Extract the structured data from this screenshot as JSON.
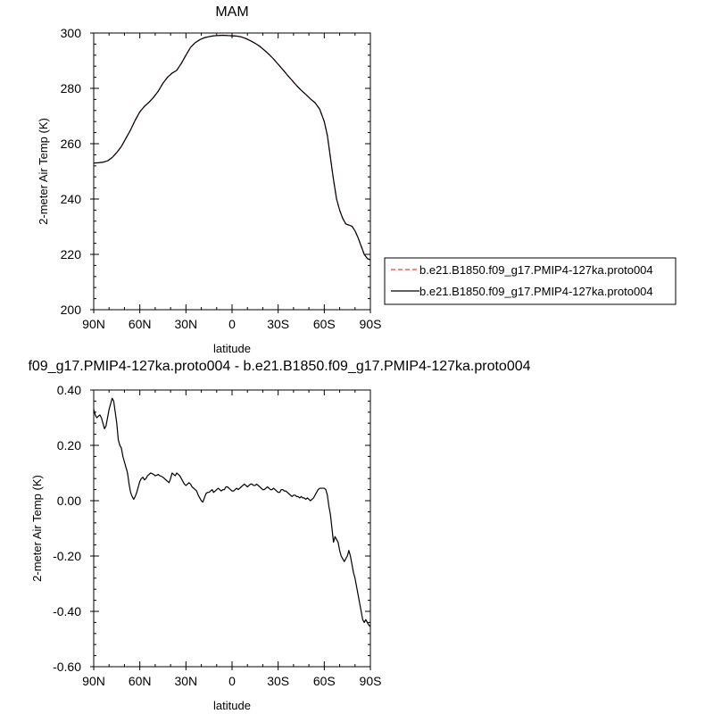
{
  "chart_data": [
    {
      "type": "line",
      "title": "MAM",
      "xlabel": "latitude",
      "ylabel": "2-meter Air Temp (K)",
      "xlim": [
        90,
        -90
      ],
      "ylim": [
        200,
        300
      ],
      "xticks": [
        90,
        60,
        30,
        0,
        -30,
        -60,
        -90
      ],
      "xtick_labels": [
        "90N",
        "60N",
        "30N",
        "0",
        "30S",
        "60S",
        "90S"
      ],
      "yticks": [
        200,
        220,
        240,
        260,
        280,
        300
      ],
      "ytick_labels": [
        "200",
        "220",
        "240",
        "260",
        "280",
        "300"
      ],
      "legend_position": "right",
      "series": [
        {
          "name": "b.e21.B1850.f09_g17.PMIP4-127ka.proto004",
          "style": "dashed",
          "color": "#e8413c",
          "x": [
            90,
            87,
            84,
            81,
            78,
            75,
            72,
            69,
            66,
            63,
            60,
            57,
            54,
            51,
            48,
            45,
            42,
            39,
            36,
            33,
            30,
            27,
            24,
            21,
            18,
            15,
            12,
            9,
            6,
            3,
            0,
            -3,
            -6,
            -9,
            -12,
            -15,
            -18,
            -21,
            -24,
            -27,
            -30,
            -33,
            -36,
            -39,
            -42,
            -45,
            -48,
            -51,
            -54,
            -57,
            -60,
            -62,
            -64,
            -66,
            -68,
            -70,
            -72,
            -74,
            -76,
            -78,
            -80,
            -82,
            -84,
            -86,
            -88,
            -90
          ],
          "y": [
            253,
            253.1,
            253.3,
            253.8,
            255,
            256.8,
            259,
            262,
            265,
            268.5,
            271.5,
            273.5,
            275,
            276.8,
            279,
            281.8,
            284,
            285.5,
            286.5,
            289,
            292,
            294.8,
            296.5,
            297.6,
            298.3,
            298.7,
            299,
            299.1,
            299.2,
            299.1,
            299,
            298.9,
            298.6,
            298,
            297.2,
            296.3,
            295.2,
            293.8,
            292.3,
            290.6,
            288.7,
            286.8,
            284.8,
            282.9,
            281,
            279.3,
            277.8,
            276.2,
            274.8,
            272.5,
            268,
            263,
            255,
            247,
            240,
            236,
            233,
            231,
            230.6,
            230.2,
            228.5,
            226,
            223,
            220,
            218.5,
            218
          ]
        },
        {
          "name": "b.e21.B1850.f09_g17.PMIP4-127ka.proto004",
          "style": "solid",
          "color": "#000000",
          "x": [
            90,
            87,
            84,
            81,
            78,
            75,
            72,
            69,
            66,
            63,
            60,
            57,
            54,
            51,
            48,
            45,
            42,
            39,
            36,
            33,
            30,
            27,
            24,
            21,
            18,
            15,
            12,
            9,
            6,
            3,
            0,
            -3,
            -6,
            -9,
            -12,
            -15,
            -18,
            -21,
            -24,
            -27,
            -30,
            -33,
            -36,
            -39,
            -42,
            -45,
            -48,
            -51,
            -54,
            -57,
            -60,
            -62,
            -64,
            -66,
            -68,
            -70,
            -72,
            -74,
            -76,
            -78,
            -80,
            -82,
            -84,
            -86,
            -88,
            -90
          ],
          "y": [
            253,
            253.1,
            253.3,
            253.8,
            255,
            256.8,
            259,
            262,
            265,
            268.5,
            271.5,
            273.5,
            275,
            276.8,
            279,
            281.8,
            284,
            285.5,
            286.5,
            289,
            292,
            294.8,
            296.5,
            297.6,
            298.3,
            298.7,
            299,
            299.1,
            299.2,
            299.1,
            299,
            298.9,
            298.6,
            298,
            297.2,
            296.3,
            295.2,
            293.8,
            292.3,
            290.6,
            288.7,
            286.8,
            284.8,
            282.9,
            281,
            279.3,
            277.8,
            276.2,
            274.8,
            272.5,
            268,
            263,
            255,
            247,
            240,
            236,
            233,
            231,
            230.6,
            230.2,
            228.5,
            226,
            223,
            220,
            218.5,
            218
          ]
        }
      ]
    },
    {
      "type": "line",
      "title": "f09_g17.PMIP4-127ka.proto004 - b.e21.B1850.f09_g17.PMIP4-127ka.proto004",
      "xlabel": "latitude",
      "ylabel": "2-meter Air Temp (K)",
      "xlim": [
        90,
        -90
      ],
      "ylim": [
        -0.6,
        0.4
      ],
      "xticks": [
        90,
        60,
        30,
        0,
        -30,
        -60,
        -90
      ],
      "xtick_labels": [
        "90N",
        "60N",
        "30N",
        "0",
        "30S",
        "60S",
        "90S"
      ],
      "yticks": [
        -0.6,
        -0.4,
        -0.2,
        0,
        0.2,
        0.4
      ],
      "ytick_labels": [
        "-0.60",
        "-0.40",
        "-0.20",
        "0.00",
        "0.20",
        "0.40"
      ],
      "series": [
        {
          "style": "solid",
          "color": "#000000",
          "x": [
            90,
            89,
            88,
            87,
            86,
            85,
            84,
            83,
            82,
            81,
            80,
            79,
            78,
            77,
            76,
            75,
            74,
            73,
            72,
            71,
            70,
            69,
            68,
            67,
            66,
            65,
            64,
            63,
            62,
            61,
            60,
            59,
            58,
            57,
            56,
            55,
            54,
            53,
            52,
            51,
            50,
            49,
            48,
            47,
            46,
            45,
            44,
            43,
            42,
            41,
            40,
            39,
            38,
            37,
            36,
            35,
            34,
            33,
            32,
            31,
            30,
            29,
            28,
            27,
            26,
            25,
            24,
            23,
            22,
            21,
            20,
            19,
            18,
            17,
            16,
            15,
            14,
            13,
            12,
            11,
            10,
            9,
            8,
            7,
            6,
            5,
            4,
            3,
            2,
            1,
            0,
            -1,
            -2,
            -3,
            -4,
            -5,
            -6,
            -7,
            -8,
            -9,
            -10,
            -11,
            -12,
            -13,
            -14,
            -15,
            -16,
            -17,
            -18,
            -19,
            -20,
            -21,
            -22,
            -23,
            -24,
            -25,
            -26,
            -27,
            -28,
            -29,
            -30,
            -31,
            -32,
            -33,
            -34,
            -35,
            -36,
            -37,
            -38,
            -39,
            -40,
            -41,
            -42,
            -43,
            -44,
            -45,
            -46,
            -47,
            -48,
            -49,
            -50,
            -51,
            -52,
            -53,
            -54,
            -55,
            -56,
            -57,
            -58,
            -59,
            -60,
            -61,
            -62,
            -63,
            -64,
            -65,
            -66,
            -67,
            -68,
            -69,
            -70,
            -71,
            -72,
            -73,
            -74,
            -75,
            -76,
            -77,
            -78,
            -79,
            -80,
            -81,
            -82,
            -83,
            -84,
            -85,
            -86,
            -87,
            -88,
            -89,
            -90
          ],
          "y": [
            0.33,
            0.31,
            0.3,
            0.305,
            0.31,
            0.3,
            0.28,
            0.26,
            0.27,
            0.3,
            0.33,
            0.35,
            0.37,
            0.36,
            0.32,
            0.28,
            0.22,
            0.2,
            0.19,
            0.16,
            0.14,
            0.12,
            0.1,
            0.06,
            0.03,
            0.015,
            0.005,
            0.015,
            0.03,
            0.05,
            0.07,
            0.08,
            0.085,
            0.075,
            0.08,
            0.09,
            0.095,
            0.1,
            0.098,
            0.095,
            0.09,
            0.092,
            0.095,
            0.09,
            0.088,
            0.085,
            0.08,
            0.075,
            0.07,
            0.065,
            0.08,
            0.1,
            0.095,
            0.09,
            0.1,
            0.095,
            0.09,
            0.08,
            0.07,
            0.06,
            0.055,
            0.06,
            0.065,
            0.06,
            0.05,
            0.045,
            0.04,
            0.035,
            0.02,
            0.01,
            0.0,
            -0.005,
            0.01,
            0.025,
            0.03,
            0.03,
            0.035,
            0.04,
            0.03,
            0.035,
            0.04,
            0.045,
            0.04,
            0.035,
            0.04,
            0.04,
            0.05,
            0.05,
            0.045,
            0.04,
            0.035,
            0.035,
            0.04,
            0.045,
            0.04,
            0.045,
            0.05,
            0.055,
            0.06,
            0.055,
            0.05,
            0.055,
            0.06,
            0.06,
            0.055,
            0.055,
            0.06,
            0.055,
            0.05,
            0.045,
            0.04,
            0.04,
            0.045,
            0.05,
            0.045,
            0.04,
            0.04,
            0.045,
            0.04,
            0.035,
            0.03,
            0.03,
            0.04,
            0.04,
            0.035,
            0.035,
            0.03,
            0.025,
            0.02,
            0.015,
            0.02,
            0.02,
            0.015,
            0.015,
            0.01,
            0.015,
            0.01,
            0.01,
            0.005,
            0.01,
            0.005,
            0.0,
            0.005,
            0.01,
            0.02,
            0.03,
            0.04,
            0.045,
            0.045,
            0.045,
            0.045,
            0.04,
            0.02,
            -0.02,
            -0.05,
            -0.1,
            -0.15,
            -0.13,
            -0.14,
            -0.15,
            -0.18,
            -0.2,
            -0.21,
            -0.22,
            -0.21,
            -0.2,
            -0.18,
            -0.2,
            -0.23,
            -0.26,
            -0.28,
            -0.31,
            -0.34,
            -0.37,
            -0.4,
            -0.43,
            -0.44,
            -0.43,
            -0.44,
            -0.45,
            -0.455
          ]
        }
      ]
    }
  ]
}
